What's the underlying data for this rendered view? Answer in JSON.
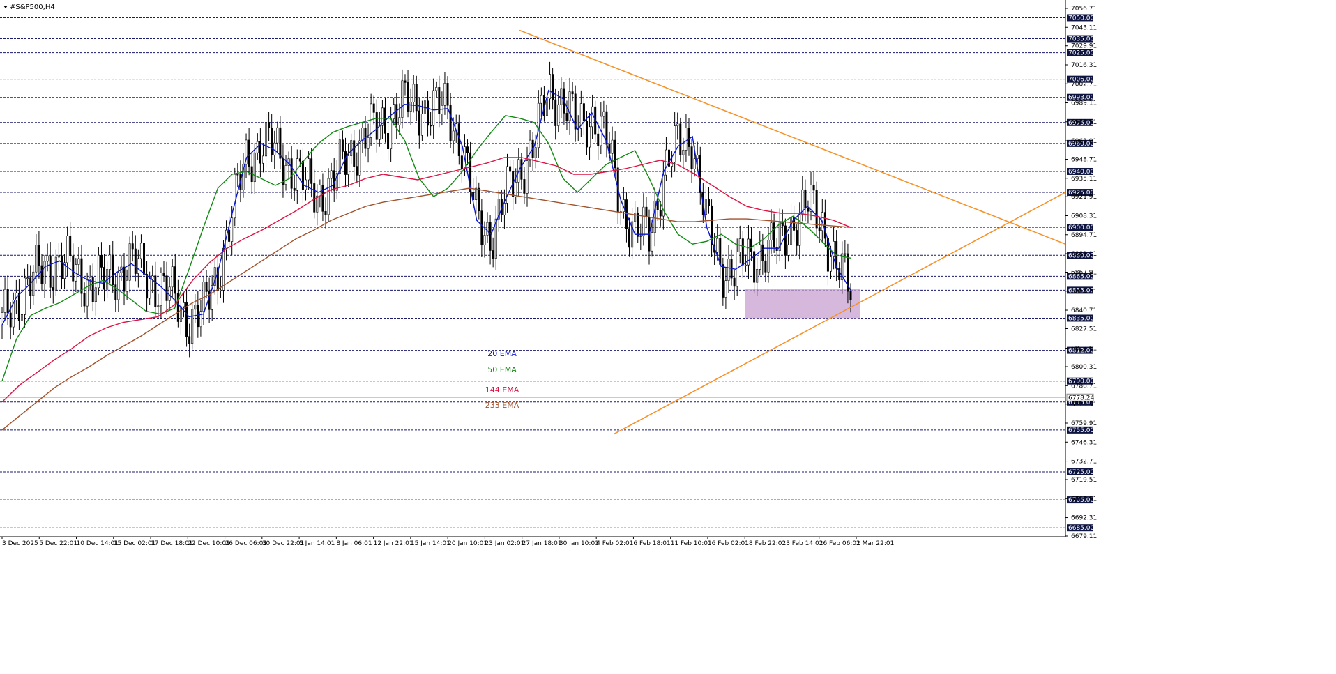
{
  "window": {
    "title": "#S&P500,H4"
  },
  "chart_data": {
    "type": "candlestick",
    "symbol": "#S&P500",
    "timeframe": "H4",
    "ylim": [
      6679.11,
      7056.71
    ],
    "price_labels": [
      "7056.71",
      "7043.11",
      "7029.91",
      "7016.31",
      "7002.71",
      "6989.11",
      "6975.51",
      "6961.91",
      "6948.71",
      "6935.11",
      "6921.91",
      "6908.31",
      "6894.71",
      "6881.11",
      "6867.91",
      "6854.31",
      "6840.71",
      "6827.51",
      "6813.51",
      "6800.31",
      "6786.71",
      "6773.51",
      "6759.91",
      "6746.31",
      "6732.71",
      "6719.51",
      "6705.91",
      "6692.31",
      "6679.11"
    ],
    "x_labels": [
      "3 Dec 2025",
      "5 Dec 22:01",
      "10 Dec 14:01",
      "15 Dec 02:01",
      "17 Dec 18:01",
      "22 Dec 10:01",
      "26 Dec 06:01",
      "30 Dec 22:01",
      "5 Jan 14:01",
      "8 Jan 06:01",
      "12 Jan 22:01",
      "15 Jan 14:01",
      "20 Jan 10:01",
      "23 Jan 02:01",
      "27 Jan 18:01",
      "30 Jan 10:01",
      "4 Feb 02:01",
      "6 Feb 18:01",
      "11 Feb 10:01",
      "16 Feb 02:01",
      "18 Feb 22:01",
      "23 Feb 14:01",
      "26 Feb 06:01",
      "2 Mar 22:01"
    ],
    "horizontal_levels": [
      {
        "label": "7050.00",
        "value": 7050
      },
      {
        "label": "7035.00",
        "value": 7035
      },
      {
        "label": "7025.00",
        "value": 7025
      },
      {
        "label": "7006.00",
        "value": 7006
      },
      {
        "label": "6993.00",
        "value": 6993
      },
      {
        "label": "6975.00",
        "value": 6975
      },
      {
        "label": "6960.00",
        "value": 6960
      },
      {
        "label": "6940.00",
        "value": 6940
      },
      {
        "label": "6925.00",
        "value": 6925
      },
      {
        "label": "6900.00",
        "value": 6900
      },
      {
        "label": "6880.00",
        "value": 6880
      },
      {
        "label": "6865.00",
        "value": 6865
      },
      {
        "label": "6855.00",
        "value": 6855
      },
      {
        "label": "6835.00",
        "value": 6835
      },
      {
        "label": "6812.00",
        "value": 6812
      },
      {
        "label": "6790.00",
        "value": 6790
      },
      {
        "label": "6775.00",
        "value": 6775
      },
      {
        "label": "6755.00",
        "value": 6755
      },
      {
        "label": "6725.00",
        "value": 6725
      },
      {
        "label": "6705.00",
        "value": 6705
      },
      {
        "label": "6685.00",
        "value": 6685
      }
    ],
    "current_price": {
      "label": "6778.24",
      "value": 6778.24
    },
    "series": [
      {
        "name": "20 EMA",
        "color": "#0a16c8",
        "values": [
          6830,
          6850,
          6860,
          6872,
          6876,
          6868,
          6862,
          6860,
          6868,
          6874,
          6866,
          6858,
          6848,
          6836,
          6838,
          6868,
          6910,
          6950,
          6960,
          6955,
          6945,
          6930,
          6925,
          6930,
          6952,
          6962,
          6970,
          6980,
          6988,
          6987,
          6984,
          6985,
          6958,
          6905,
          6895,
          6920,
          6942,
          6958,
          6998,
          6992,
          6970,
          6982,
          6962,
          6920,
          6895,
          6895,
          6940,
          6958,
          6965,
          6900,
          6872,
          6870,
          6877,
          6885,
          6885,
          6905,
          6915,
          6905,
          6872,
          6855
        ]
      },
      {
        "name": "50 EMA",
        "color": "#108a10",
        "values": [
          6790,
          6820,
          6837,
          6842,
          6846,
          6852,
          6858,
          6862,
          6856,
          6848,
          6840,
          6838,
          6842,
          6870,
          6900,
          6928,
          6938,
          6940,
          6935,
          6930,
          6935,
          6948,
          6960,
          6968,
          6972,
          6975,
          6978,
          6978,
          6962,
          6935,
          6922,
          6928,
          6940,
          6955,
          6968,
          6980,
          6978,
          6975,
          6960,
          6935,
          6925,
          6935,
          6945,
          6950,
          6955,
          6935,
          6912,
          6895,
          6888,
          6890,
          6895,
          6888,
          6885,
          6892,
          6902,
          6908,
          6900,
          6890,
          6880,
          6878
        ]
      },
      {
        "name": "144 EMA",
        "color": "#dc1443",
        "values": [
          6775,
          6787,
          6796,
          6805,
          6813,
          6822,
          6828,
          6832,
          6834,
          6836,
          6845,
          6862,
          6875,
          6885,
          6892,
          6898,
          6905,
          6912,
          6920,
          6927,
          6930,
          6935,
          6938,
          6936,
          6934,
          6937,
          6940,
          6943,
          6946,
          6950,
          6950,
          6947,
          6944,
          6938,
          6938,
          6940,
          6942,
          6945,
          6948,
          6945,
          6938,
          6930,
          6922,
          6915,
          6912,
          6910,
          6910,
          6908,
          6905,
          6900
        ]
      },
      {
        "name": "233 EMA",
        "color": "#a0522d",
        "values": [
          6755,
          6765,
          6775,
          6785,
          6793,
          6800,
          6808,
          6815,
          6822,
          6830,
          6838,
          6846,
          6852,
          6860,
          6868,
          6876,
          6884,
          6892,
          6898,
          6905,
          6910,
          6915,
          6918,
          6920,
          6922,
          6924,
          6926,
          6928,
          6926,
          6924,
          6922,
          6920,
          6918,
          6916,
          6914,
          6912,
          6910,
          6908,
          6906,
          6904,
          6904,
          6905,
          6906,
          6906,
          6905,
          6904,
          6903,
          6902,
          6901,
          6900
        ]
      }
    ],
    "trendlines": [
      {
        "name": "descending",
        "color": "#f5932a",
        "from": {
          "x": "27 Jan 18:01",
          "y": 7041
        },
        "to": {
          "x": "right-edge",
          "y": 6888
        }
      },
      {
        "name": "ascending",
        "color": "#f5932a",
        "from": {
          "x": "4 Feb 02:01",
          "y": 6752
        },
        "to": {
          "x": "right-edge",
          "y": 6925
        }
      }
    ],
    "zone": {
      "name": "support-zone",
      "color": "#c8a0d2",
      "y_from": 6835,
      "y_to": 6856
    },
    "legend": {
      "placement": "center",
      "entries": [
        "20 EMA",
        "50 EMA",
        "144 EMA",
        "233 EMA"
      ]
    },
    "grid": false
  }
}
